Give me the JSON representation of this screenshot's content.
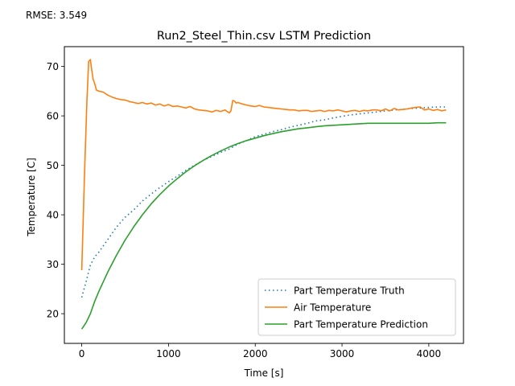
{
  "figure": {
    "annotation": "RMSE: 3.549"
  },
  "chart_data": {
    "type": "line",
    "title": "Run2_Steel_Thin.csv LSTM Prediction",
    "xlabel": "Time [s]",
    "ylabel": "Temperature [C]",
    "xlim": [
      -200,
      4400
    ],
    "ylim": [
      14,
      74
    ],
    "xticks": [
      0,
      1000,
      2000,
      3000,
      4000
    ],
    "yticks": [
      20,
      30,
      40,
      50,
      60,
      70
    ],
    "grid": false,
    "legend_position": "lower right",
    "series": [
      {
        "name": "Part Temperature Truth",
        "style": "dotted",
        "color": "#1f77b4",
        "x": [
          0,
          50,
          100,
          150,
          200,
          300,
          400,
          500,
          600,
          700,
          800,
          900,
          1000,
          1100,
          1200,
          1300,
          1400,
          1500,
          1600,
          1700,
          1800,
          1900,
          2000,
          2100,
          2200,
          2300,
          2400,
          2500,
          2600,
          2700,
          2800,
          2900,
          3000,
          3100,
          3200,
          3300,
          3400,
          3500,
          3600,
          3700,
          3800,
          3900,
          4000,
          4100,
          4200
        ],
        "values": [
          23.3,
          26.5,
          29.8,
          31.5,
          32.5,
          35.0,
          37.5,
          39.5,
          41.0,
          42.8,
          44.2,
          45.5,
          46.7,
          47.8,
          49.0,
          50.0,
          51.0,
          51.8,
          52.6,
          53.3,
          54.3,
          55.0,
          55.8,
          56.3,
          56.8,
          57.2,
          57.7,
          58.1,
          58.5,
          59.0,
          59.2,
          59.6,
          59.9,
          60.2,
          60.4,
          60.6,
          60.8,
          61.0,
          61.2,
          61.3,
          61.5,
          61.6,
          61.7,
          61.8,
          61.8
        ]
      },
      {
        "name": "Air Temperature",
        "style": "solid",
        "color": "#ff7f0e",
        "x": [
          0,
          30,
          60,
          80,
          100,
          110,
          130,
          150,
          170,
          200,
          250,
          300,
          350,
          400,
          450,
          500,
          550,
          600,
          650,
          700,
          750,
          800,
          850,
          900,
          950,
          1000,
          1050,
          1100,
          1150,
          1200,
          1250,
          1300,
          1350,
          1400,
          1450,
          1500,
          1550,
          1600,
          1650,
          1700,
          1720,
          1740,
          1760,
          1780,
          1800,
          1850,
          1900,
          1950,
          2000,
          2050,
          2100,
          2150,
          2200,
          2250,
          2300,
          2350,
          2400,
          2450,
          2500,
          2550,
          2600,
          2650,
          2700,
          2750,
          2800,
          2850,
          2900,
          2950,
          3000,
          3050,
          3100,
          3150,
          3200,
          3250,
          3300,
          3350,
          3400,
          3450,
          3500,
          3550,
          3600,
          3650,
          3700,
          3750,
          3800,
          3850,
          3900,
          3950,
          4000,
          4050,
          4100,
          4150,
          4200
        ],
        "values": [
          28.8,
          47.0,
          63.0,
          71.0,
          71.4,
          70.0,
          67.5,
          66.5,
          65.2,
          65.0,
          64.8,
          64.2,
          63.8,
          63.5,
          63.3,
          63.2,
          62.9,
          62.7,
          62.5,
          62.7,
          62.4,
          62.6,
          62.2,
          62.4,
          62.0,
          62.3,
          61.9,
          62.0,
          61.8,
          61.6,
          61.9,
          61.4,
          61.2,
          61.1,
          61.0,
          60.8,
          61.1,
          60.9,
          61.2,
          60.6,
          61.0,
          63.1,
          63.0,
          62.6,
          62.7,
          62.4,
          62.2,
          62.0,
          61.9,
          62.1,
          61.8,
          61.7,
          61.6,
          61.5,
          61.4,
          61.3,
          61.2,
          61.2,
          61.0,
          61.1,
          61.1,
          60.9,
          61.0,
          61.1,
          60.9,
          61.1,
          61.0,
          61.2,
          61.0,
          60.8,
          61.0,
          61.1,
          60.9,
          61.1,
          61.0,
          61.2,
          61.2,
          61.0,
          61.4,
          61.0,
          61.5,
          61.2,
          61.3,
          61.4,
          61.6,
          61.7,
          61.8,
          61.2,
          61.4,
          61.1,
          61.3,
          61.0,
          61.2
        ]
      },
      {
        "name": "Part Temperature Prediction",
        "style": "solid",
        "color": "#2ca02c",
        "x": [
          0,
          50,
          100,
          150,
          200,
          300,
          400,
          500,
          600,
          700,
          800,
          900,
          1000,
          1100,
          1200,
          1300,
          1400,
          1500,
          1600,
          1700,
          1800,
          1900,
          2000,
          2100,
          2200,
          2300,
          2400,
          2500,
          2600,
          2700,
          2800,
          2900,
          3000,
          3100,
          3200,
          3300,
          3400,
          3500,
          3600,
          3700,
          3800,
          3900,
          4000,
          4100,
          4200
        ],
        "values": [
          16.9,
          18.2,
          20.0,
          22.5,
          24.6,
          28.4,
          31.8,
          34.9,
          37.6,
          40.0,
          42.2,
          44.1,
          45.8,
          47.3,
          48.7,
          49.9,
          51.0,
          52.0,
          52.9,
          53.7,
          54.4,
          55.0,
          55.5,
          56.0,
          56.4,
          56.8,
          57.1,
          57.4,
          57.6,
          57.8,
          58.0,
          58.1,
          58.2,
          58.3,
          58.4,
          58.5,
          58.5,
          58.5,
          58.5,
          58.5,
          58.5,
          58.5,
          58.5,
          58.6,
          58.6
        ]
      }
    ]
  }
}
